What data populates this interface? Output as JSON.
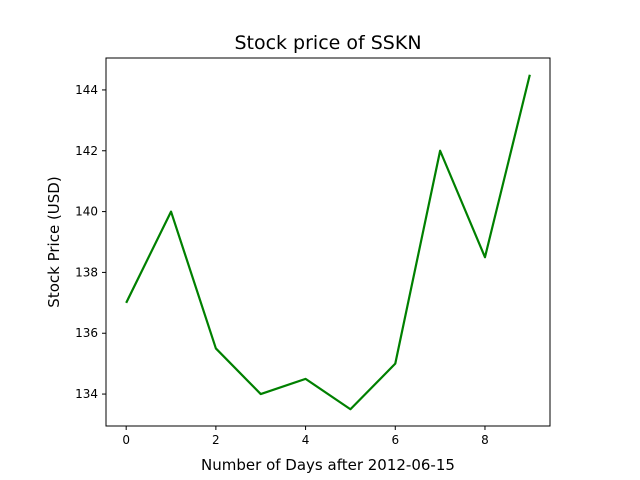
{
  "chart_data": {
    "type": "line",
    "title": "Stock price of SSKN",
    "xlabel": "Number of Days after 2012-06-15",
    "ylabel": "Stock Price (USD)",
    "x": [
      0,
      1,
      2,
      3,
      4,
      5,
      6,
      7,
      8,
      9
    ],
    "series": [
      {
        "values": [
          137.0,
          140.0,
          135.5,
          134.0,
          134.5,
          133.5,
          135.0,
          142.0,
          138.5,
          144.5
        ]
      }
    ],
    "xlim": [
      -0.45,
      9.45
    ],
    "ylim": [
      132.95,
      145.05
    ],
    "xticks": [
      0,
      2,
      4,
      6,
      8
    ],
    "yticks": [
      134,
      136,
      138,
      140,
      142,
      144
    ],
    "line_color": "#008000",
    "grid": false,
    "legend": "none"
  }
}
